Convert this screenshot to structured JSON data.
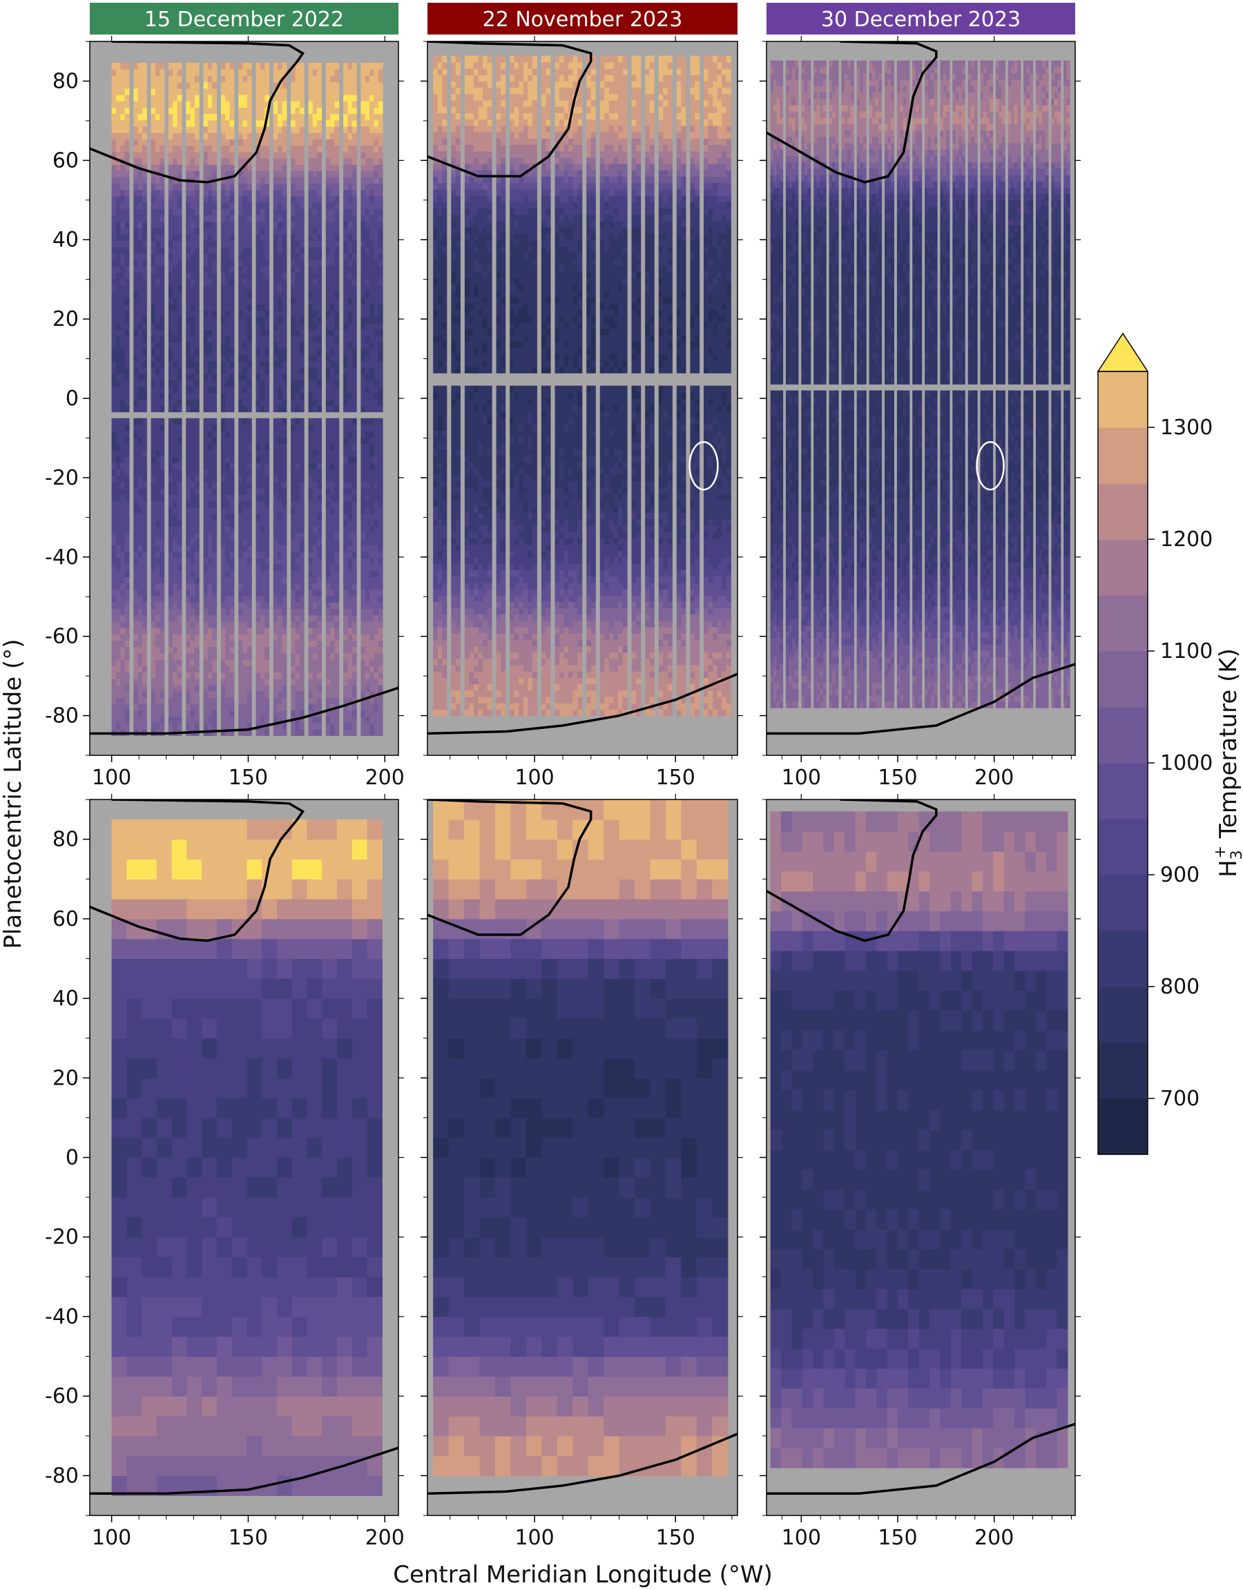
{
  "colors": {
    "title_bg": [
      "#3a8a5a",
      "#8b0000",
      "#6b3fa0"
    ],
    "missing": "#a6a6a6",
    "boundary": "#000000",
    "oval": "#ffffff"
  },
  "chart_data": {
    "type": "heatmap",
    "titles": [
      "15 December 2022",
      "22 November 2023",
      "30 December 2023"
    ],
    "xlabel": "Central Meridian Longitude (°W)",
    "ylabel": "Planetocentric Latitude (°)",
    "ylim": [
      -90,
      90
    ],
    "yticks": [
      -80,
      -60,
      -40,
      -20,
      0,
      20,
      40,
      60,
      80
    ],
    "columns": [
      {
        "xlim": [
          92,
          205
        ],
        "xticks": [
          100,
          150,
          200
        ]
      },
      {
        "xlim": [
          62,
          172
        ],
        "xticks": [
          100,
          150
        ]
      },
      {
        "xlim": [
          82,
          242
        ],
        "xticks": [
          100,
          150,
          200
        ]
      }
    ],
    "rows": [
      "observed",
      "binned"
    ],
    "colorbar": {
      "label_main": "H",
      "label_sub": "3",
      "label_sup": "+",
      "label_rest": " Temperature (K)",
      "ticks": [
        700,
        800,
        900,
        1000,
        1100,
        1200,
        1300
      ],
      "range": [
        650,
        1350
      ],
      "extend": "max",
      "levels": [
        650,
        700,
        750,
        800,
        850,
        900,
        950,
        1000,
        1050,
        1100,
        1150,
        1200,
        1250,
        1300,
        1350
      ],
      "colors": [
        "#1e2748",
        "#272f58",
        "#303566",
        "#3a3a72",
        "#463f80",
        "#52478b",
        "#604f93",
        "#6f5a97",
        "#7e6499",
        "#8f6e98",
        "#a57b93",
        "#bd8a8c",
        "#d39d84",
        "#e7b87a",
        "#f2d56a"
      ],
      "over_color": "#fde35a"
    },
    "temperature_profiles": [
      {
        "lat": [
          -90,
          -80,
          -70,
          -60,
          -50,
          -40,
          -20,
          0,
          20,
          40,
          50,
          60,
          70,
          80,
          90
        ],
        "temp": [
          1050,
          1060,
          1140,
          1160,
          1000,
          950,
          880,
          860,
          860,
          900,
          960,
          1200,
          1350,
          1320,
          1300
        ]
      },
      {
        "lat": [
          -90,
          -80,
          -70,
          -60,
          -50,
          -40,
          -20,
          0,
          20,
          40,
          50,
          60,
          70,
          80,
          90
        ],
        "temp": [
          1100,
          1260,
          1220,
          1160,
          1000,
          880,
          790,
          770,
          760,
          790,
          880,
          1150,
          1290,
          1300,
          1290
        ]
      },
      {
        "lat": [
          -90,
          -80,
          -70,
          -60,
          -50,
          -40,
          -20,
          0,
          20,
          40,
          50,
          60,
          70,
          80,
          90
        ],
        "temp": [
          1000,
          1100,
          1080,
          1000,
          900,
          850,
          790,
          780,
          780,
          800,
          850,
          1100,
          1200,
          1150,
          1100
        ]
      }
    ],
    "auroral_boundaries": [
      {
        "north": [
          [
            92,
            63
          ],
          [
            110,
            58
          ],
          [
            125,
            55
          ],
          [
            135,
            54.5
          ],
          [
            145,
            56
          ],
          [
            153,
            62
          ],
          [
            156,
            68
          ],
          [
            158,
            75
          ],
          [
            162,
            80
          ],
          [
            168,
            85
          ],
          [
            170,
            87
          ],
          [
            165,
            89
          ],
          [
            150,
            89.5
          ],
          [
            100,
            90
          ]
        ],
        "south": [
          [
            92,
            -84.5
          ],
          [
            120,
            -84.5
          ],
          [
            150,
            -83.5
          ],
          [
            170,
            -80.5
          ],
          [
            185,
            -77.5
          ],
          [
            205,
            -73
          ]
        ]
      },
      {
        "north": [
          [
            62,
            61
          ],
          [
            80,
            56
          ],
          [
            95,
            56
          ],
          [
            105,
            61
          ],
          [
            112,
            68
          ],
          [
            114,
            75
          ],
          [
            116,
            80
          ],
          [
            120,
            85
          ],
          [
            120,
            87
          ],
          [
            110,
            89
          ],
          [
            80,
            89.5
          ],
          [
            62,
            90
          ]
        ],
        "south": [
          [
            62,
            -84.5
          ],
          [
            90,
            -84
          ],
          [
            110,
            -82.5
          ],
          [
            130,
            -80
          ],
          [
            150,
            -76
          ],
          [
            172,
            -69.5
          ]
        ]
      },
      {
        "north": [
          [
            82,
            67
          ],
          [
            100,
            62
          ],
          [
            118,
            57
          ],
          [
            133,
            54.5
          ],
          [
            145,
            56
          ],
          [
            153,
            62
          ],
          [
            156,
            70
          ],
          [
            158,
            76
          ],
          [
            163,
            82
          ],
          [
            170,
            86
          ],
          [
            170,
            87.5
          ],
          [
            160,
            89.5
          ],
          [
            120,
            90
          ]
        ],
        "south": [
          [
            82,
            -84.5
          ],
          [
            130,
            -84.5
          ],
          [
            170,
            -82.5
          ],
          [
            200,
            -76.5
          ],
          [
            220,
            -70.5
          ],
          [
            242,
            -67
          ]
        ]
      }
    ],
    "coverage": [
      {
        "top_lat": 84,
        "bottom_lat": -85,
        "start_lon": 100,
        "end_lon": 198,
        "gap_lat": -5,
        "step_lon_deg": 6.5
      },
      {
        "top_lat": 86,
        "bottom_lat": -80,
        "start_lon": 64,
        "end_lon": 168,
        "gap_lat": 4,
        "step_lon_deg": 5.3
      },
      {
        "top_lat": 85,
        "bottom_lat": -78,
        "start_lon": 84,
        "end_lon": 238,
        "gap_lat": 2,
        "step_lon_deg": 7.2
      }
    ],
    "ovals": [
      null,
      {
        "lon": 160,
        "lat": -17,
        "rlon": 5,
        "rlat": 6
      },
      {
        "lon": 198,
        "lat": -17,
        "rlon": 7,
        "rlat": 6
      }
    ]
  }
}
